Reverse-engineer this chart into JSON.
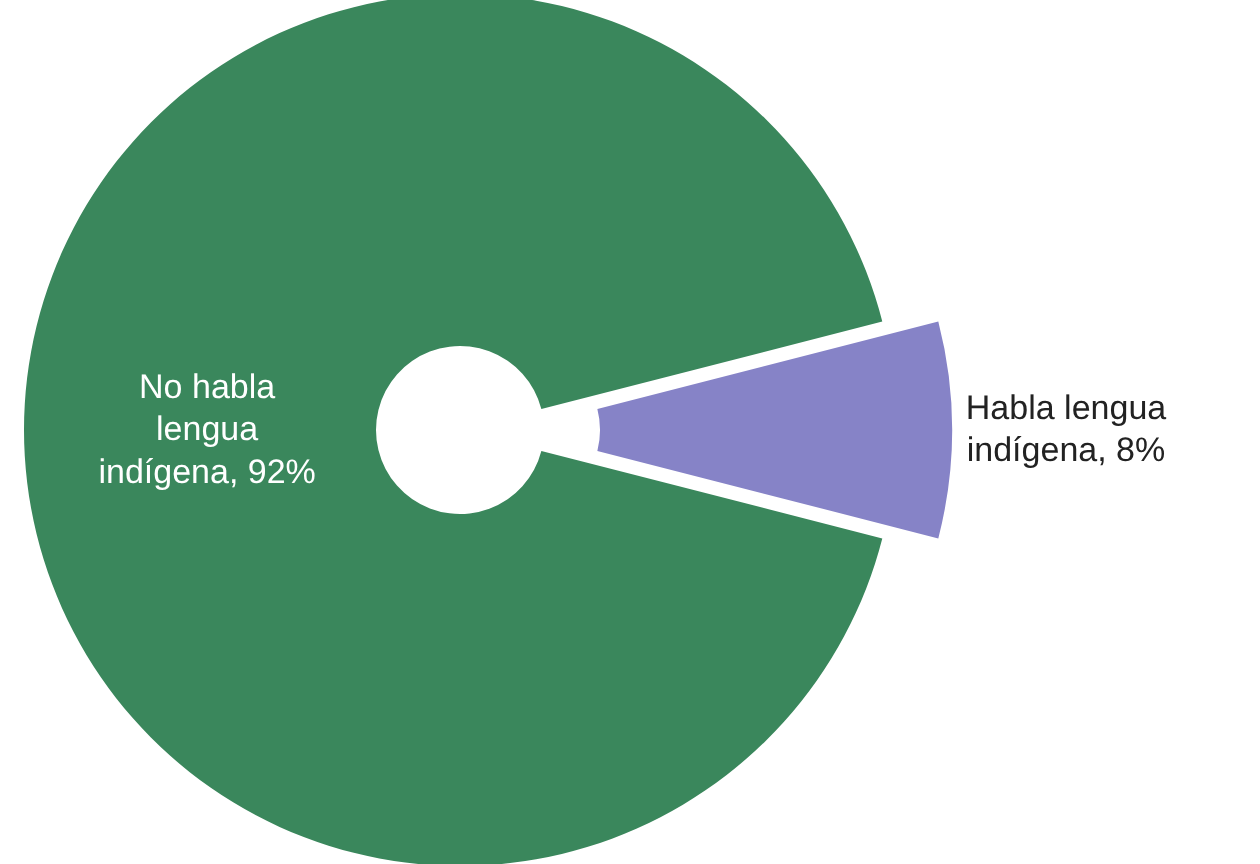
{
  "chart_data": {
    "type": "donut",
    "categories": [
      "Habla lengua indígena, 8%",
      "No habla lengua indígena, 92%"
    ],
    "values": [
      8,
      92
    ],
    "colors": [
      "#8683c7",
      "#3a875c"
    ]
  }
}
